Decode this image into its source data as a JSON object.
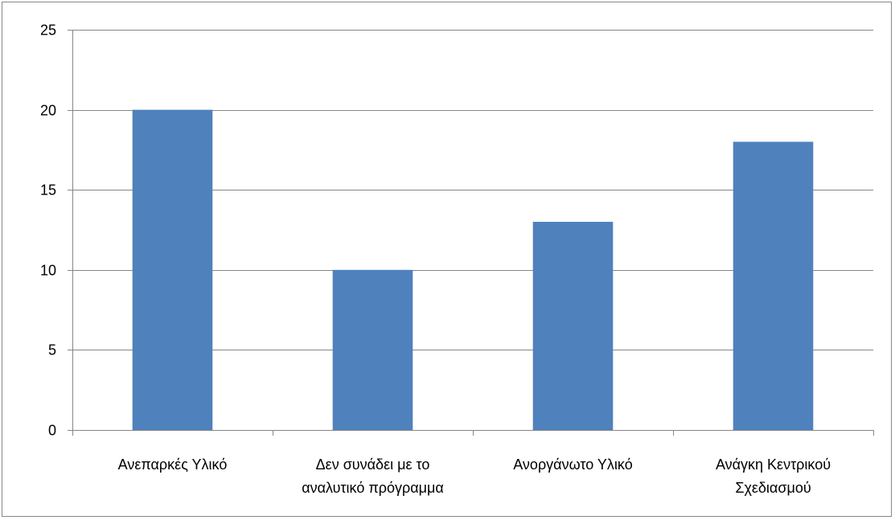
{
  "chart_data": {
    "type": "bar",
    "title": "",
    "xlabel": "",
    "ylabel": "",
    "categories": [
      [
        "Ανεπαρκές Υλικό"
      ],
      [
        "Δεν συνάδει με το",
        "αναλυτικό πρόγραμμα"
      ],
      [
        "Ανοργάνωτο Υλικό"
      ],
      [
        "Ανάγκη Κεντρικού",
        "Σχεδιασμού"
      ]
    ],
    "values": [
      20,
      10,
      13,
      18
    ],
    "ylim": [
      0,
      25
    ],
    "yticks": [
      0,
      5,
      10,
      15,
      20,
      25
    ],
    "grid": "horizontal",
    "legend": "none",
    "colors": {
      "bar": "#4f81bd",
      "grid": "#868686",
      "axis": "#868686",
      "frame": "#878787"
    }
  }
}
